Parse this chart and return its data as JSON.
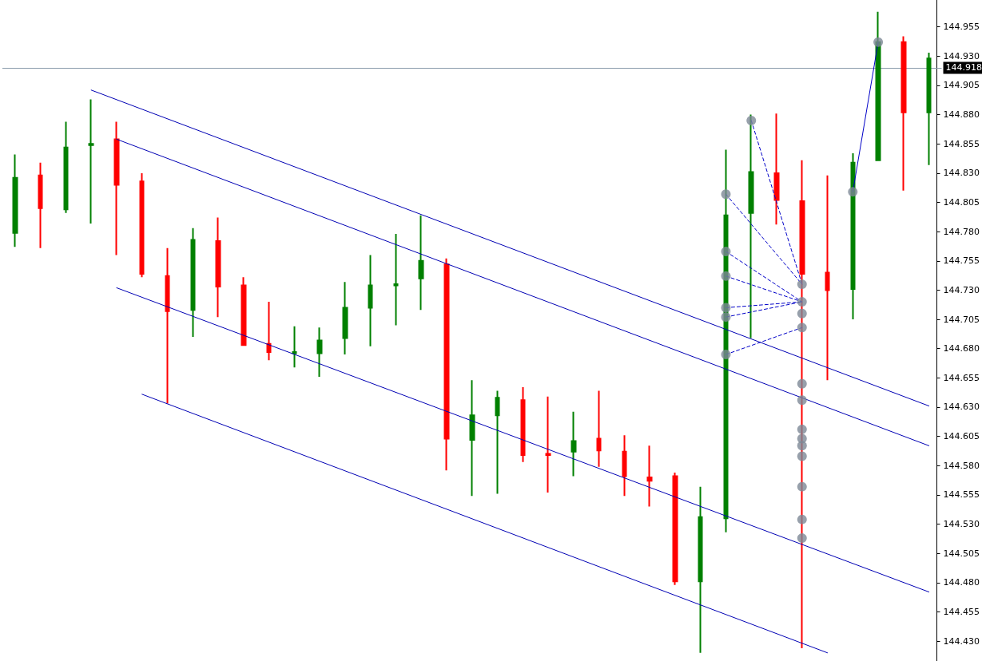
{
  "chart_data": {
    "type": "candlestick",
    "categories": [
      null,
      null,
      null,
      null,
      null,
      null,
      null,
      null,
      null,
      null,
      null,
      null,
      null,
      null,
      null,
      null,
      null,
      null,
      null,
      null,
      null,
      null,
      null,
      null,
      null,
      null,
      null,
      null,
      null,
      null,
      null,
      null,
      null,
      null,
      null,
      null,
      null
    ],
    "ohlc": [
      [
        144.779,
        144.846,
        144.767,
        144.826
      ],
      [
        144.828,
        144.839,
        144.766,
        144.8
      ],
      [
        144.799,
        144.874,
        144.796,
        144.852
      ],
      [
        144.854,
        144.893,
        144.787,
        144.855
      ],
      [
        144.859,
        144.874,
        144.76,
        144.82
      ],
      [
        144.823,
        144.83,
        144.741,
        144.744
      ],
      [
        144.742,
        144.766,
        144.633,
        144.712
      ],
      [
        144.713,
        144.783,
        144.69,
        144.773
      ],
      [
        144.772,
        144.792,
        144.707,
        144.733
      ],
      [
        144.734,
        144.741,
        144.683,
        144.683
      ],
      [
        144.684,
        144.72,
        144.67,
        144.677
      ],
      [
        144.676,
        144.699,
        144.664,
        144.677
      ],
      [
        144.676,
        144.698,
        144.656,
        144.687
      ],
      [
        144.689,
        144.737,
        144.675,
        144.715
      ],
      [
        144.715,
        144.76,
        144.682,
        144.734
      ],
      [
        144.734,
        144.778,
        144.7,
        144.735
      ],
      [
        144.74,
        144.794,
        144.713,
        144.755
      ],
      [
        144.752,
        144.757,
        144.576,
        144.603
      ],
      [
        144.602,
        144.653,
        144.554,
        144.623
      ],
      [
        144.623,
        144.644,
        144.556,
        144.638
      ],
      [
        144.636,
        144.647,
        144.583,
        144.589
      ],
      [
        144.59,
        144.639,
        144.557,
        144.589
      ],
      [
        144.592,
        144.626,
        144.571,
        144.601
      ],
      [
        144.603,
        144.644,
        144.579,
        144.593
      ],
      [
        144.592,
        144.606,
        144.554,
        144.571
      ],
      [
        144.57,
        144.597,
        144.545,
        144.567
      ],
      [
        144.571,
        144.574,
        144.478,
        144.481
      ],
      [
        144.481,
        144.562,
        144.42,
        144.536
      ],
      [
        144.535,
        144.85,
        144.523,
        144.794
      ],
      [
        144.796,
        144.88,
        144.689,
        144.831
      ],
      [
        144.83,
        144.881,
        144.786,
        144.807
      ],
      [
        144.806,
        144.841,
        144.424,
        144.744
      ],
      [
        144.745,
        144.828,
        144.653,
        144.73
      ],
      [
        144.731,
        144.847,
        144.705,
        144.839
      ],
      [
        144.841,
        144.968,
        144.841,
        144.942
      ],
      [
        144.942,
        144.947,
        144.815,
        144.882
      ],
      [
        144.882,
        144.933,
        144.837,
        144.928
      ]
    ],
    "colors": [
      "#008000",
      "#ff0000",
      "#008000",
      "#008000",
      "#ff0000",
      "#ff0000",
      "#ff0000",
      "#008000",
      "#ff0000",
      "#ff0000",
      "#ff0000",
      "#008000",
      "#008000",
      "#008000",
      "#008000",
      "#008000",
      "#008000",
      "#ff0000",
      "#008000",
      "#008000",
      "#ff0000",
      "#ff0000",
      "#008000",
      "#ff0000",
      "#ff0000",
      "#ff0000",
      "#ff0000",
      "#008000",
      "#008000",
      "#008000",
      "#ff0000",
      "#ff0000",
      "#ff0000",
      "#008000",
      "#008000",
      "#ff0000",
      "#008000"
    ],
    "series": [
      {
        "type": "line",
        "color": "#0000b4",
        "line_style": "solid",
        "values": [
          null,
          null,
          null,
          144.901,
          null,
          null,
          null,
          null,
          null,
          null,
          null,
          null,
          null,
          null,
          null,
          null,
          null,
          null,
          null,
          null,
          null,
          null,
          null,
          null,
          null,
          null,
          null,
          null,
          null,
          null,
          null,
          null,
          null,
          null,
          null,
          null,
          144.631
        ]
      },
      {
        "type": "line",
        "color": "#0000b4",
        "line_style": "solid",
        "values": [
          null,
          null,
          null,
          null,
          144.859,
          null,
          null,
          null,
          null,
          null,
          null,
          null,
          null,
          null,
          null,
          null,
          null,
          null,
          null,
          null,
          null,
          null,
          null,
          null,
          null,
          null,
          null,
          null,
          null,
          null,
          null,
          null,
          null,
          null,
          null,
          null,
          144.597
        ]
      },
      {
        "type": "line",
        "color": "#0000b4",
        "line_style": "solid",
        "values": [
          null,
          null,
          null,
          null,
          144.732,
          null,
          null,
          null,
          null,
          null,
          null,
          null,
          null,
          null,
          null,
          null,
          null,
          null,
          null,
          null,
          null,
          null,
          null,
          null,
          null,
          null,
          null,
          null,
          null,
          null,
          null,
          null,
          null,
          null,
          null,
          null,
          144.472
        ]
      },
      {
        "type": "line",
        "color": "#0000b4",
        "line_style": "solid",
        "values": [
          null,
          null,
          null,
          null,
          null,
          144.641,
          null,
          null,
          null,
          null,
          null,
          null,
          null,
          null,
          null,
          null,
          null,
          null,
          null,
          null,
          null,
          null,
          null,
          null,
          null,
          null,
          null,
          null,
          null,
          null,
          null,
          null,
          144.42,
          null,
          null,
          null,
          null
        ]
      },
      {
        "type": "line",
        "color": "#0000c8",
        "line_style": "dashed",
        "values": [
          null,
          null,
          null,
          null,
          null,
          null,
          null,
          null,
          null,
          null,
          null,
          null,
          null,
          null,
          null,
          null,
          null,
          null,
          null,
          null,
          null,
          null,
          null,
          null,
          null,
          null,
          null,
          null,
          144.812,
          null,
          null,
          144.735,
          null,
          null,
          null,
          null,
          null
        ]
      },
      {
        "type": "line",
        "color": "#0000c8",
        "line_style": "dashed",
        "values": [
          null,
          null,
          null,
          null,
          null,
          null,
          null,
          null,
          null,
          null,
          null,
          null,
          null,
          null,
          null,
          null,
          null,
          null,
          null,
          null,
          null,
          null,
          null,
          null,
          null,
          null,
          null,
          null,
          144.763,
          null,
          null,
          144.72,
          null,
          null,
          null,
          null,
          null
        ]
      },
      {
        "type": "line",
        "color": "#0000c8",
        "line_style": "dashed",
        "values": [
          null,
          null,
          null,
          null,
          null,
          null,
          null,
          null,
          null,
          null,
          null,
          null,
          null,
          null,
          null,
          null,
          null,
          null,
          null,
          null,
          null,
          null,
          null,
          null,
          null,
          null,
          null,
          null,
          144.742,
          null,
          null,
          144.72,
          null,
          null,
          null,
          null,
          null
        ]
      },
      {
        "type": "line",
        "color": "#0000c8",
        "line_style": "dashed",
        "values": [
          null,
          null,
          null,
          null,
          null,
          null,
          null,
          null,
          null,
          null,
          null,
          null,
          null,
          null,
          null,
          null,
          null,
          null,
          null,
          null,
          null,
          null,
          null,
          null,
          null,
          null,
          null,
          null,
          144.715,
          null,
          null,
          144.72,
          null,
          null,
          null,
          null,
          null
        ]
      },
      {
        "type": "line",
        "color": "#0000c8",
        "line_style": "dashed",
        "values": [
          null,
          null,
          null,
          null,
          null,
          null,
          null,
          null,
          null,
          null,
          null,
          null,
          null,
          null,
          null,
          null,
          null,
          null,
          null,
          null,
          null,
          null,
          null,
          null,
          null,
          null,
          null,
          null,
          144.707,
          null,
          null,
          144.72,
          null,
          null,
          null,
          null,
          null
        ]
      },
      {
        "type": "line",
        "color": "#0000c8",
        "line_style": "dashed",
        "values": [
          null,
          null,
          null,
          null,
          null,
          null,
          null,
          null,
          null,
          null,
          null,
          null,
          null,
          null,
          null,
          null,
          null,
          null,
          null,
          null,
          null,
          null,
          null,
          null,
          null,
          null,
          null,
          null,
          144.675,
          null,
          null,
          144.698,
          null,
          null,
          null,
          null,
          null
        ]
      },
      {
        "type": "line",
        "color": "#0000c8",
        "line_style": "dashed",
        "values": [
          null,
          null,
          null,
          null,
          null,
          null,
          null,
          null,
          null,
          null,
          null,
          null,
          null,
          null,
          null,
          null,
          null,
          null,
          null,
          null,
          null,
          null,
          null,
          null,
          null,
          null,
          null,
          null,
          null,
          144.875,
          null,
          144.735,
          null,
          null,
          null,
          null,
          null
        ]
      },
      {
        "type": "line",
        "color": "#0000c8",
        "line_style": "solid",
        "values": [
          null,
          null,
          null,
          null,
          null,
          null,
          null,
          null,
          null,
          null,
          null,
          null,
          null,
          null,
          null,
          null,
          null,
          null,
          null,
          null,
          null,
          null,
          null,
          null,
          null,
          null,
          null,
          null,
          null,
          null,
          null,
          null,
          null,
          144.814,
          144.942,
          null,
          null
        ]
      },
      {
        "type": "scatter",
        "color": "#7d8896",
        "marker": "circle",
        "values": [
          null,
          null,
          null,
          null,
          null,
          null,
          null,
          null,
          null,
          null,
          null,
          null,
          null,
          null,
          null,
          null,
          null,
          null,
          null,
          null,
          null,
          null,
          null,
          null,
          null,
          null,
          null,
          null,
          144.812,
          144.875,
          null,
          144.735,
          null,
          144.814,
          144.942,
          null,
          null
        ]
      },
      {
        "type": "scatter",
        "color": "#7d8896",
        "marker": "circle",
        "values": [
          null,
          null,
          null,
          null,
          null,
          null,
          null,
          null,
          null,
          null,
          null,
          null,
          null,
          null,
          null,
          null,
          null,
          null,
          null,
          null,
          null,
          null,
          null,
          null,
          null,
          null,
          null,
          null,
          144.763,
          null,
          null,
          144.72,
          null,
          null,
          null,
          null,
          null
        ]
      },
      {
        "type": "scatter",
        "color": "#7d8896",
        "marker": "circle",
        "values": [
          null,
          null,
          null,
          null,
          null,
          null,
          null,
          null,
          null,
          null,
          null,
          null,
          null,
          null,
          null,
          null,
          null,
          null,
          null,
          null,
          null,
          null,
          null,
          null,
          null,
          null,
          null,
          null,
          144.742,
          null,
          null,
          144.71,
          null,
          null,
          null,
          null,
          null
        ]
      },
      {
        "type": "scatter",
        "color": "#7d8896",
        "marker": "circle",
        "values": [
          null,
          null,
          null,
          null,
          null,
          null,
          null,
          null,
          null,
          null,
          null,
          null,
          null,
          null,
          null,
          null,
          null,
          null,
          null,
          null,
          null,
          null,
          null,
          null,
          null,
          null,
          null,
          null,
          144.715,
          null,
          null,
          144.698,
          null,
          null,
          null,
          null,
          null
        ]
      },
      {
        "type": "scatter",
        "color": "#7d8896",
        "marker": "circle",
        "values": [
          null,
          null,
          null,
          null,
          null,
          null,
          null,
          null,
          null,
          null,
          null,
          null,
          null,
          null,
          null,
          null,
          null,
          null,
          null,
          null,
          null,
          null,
          null,
          null,
          null,
          null,
          null,
          null,
          144.707,
          null,
          null,
          144.65,
          null,
          null,
          null,
          null,
          null
        ]
      },
      {
        "type": "scatter",
        "color": "#7d8896",
        "marker": "circle",
        "values": [
          null,
          null,
          null,
          null,
          null,
          null,
          null,
          null,
          null,
          null,
          null,
          null,
          null,
          null,
          null,
          null,
          null,
          null,
          null,
          null,
          null,
          null,
          null,
          null,
          null,
          null,
          null,
          null,
          144.675,
          null,
          null,
          144.636,
          null,
          null,
          null,
          null,
          null
        ]
      },
      {
        "type": "scatter",
        "color": "#7d8896",
        "marker": "circle",
        "values": [
          null,
          null,
          null,
          null,
          null,
          null,
          null,
          null,
          null,
          null,
          null,
          null,
          null,
          null,
          null,
          null,
          null,
          null,
          null,
          null,
          null,
          null,
          null,
          null,
          null,
          null,
          null,
          null,
          null,
          null,
          null,
          144.611,
          null,
          null,
          null,
          null,
          null
        ]
      },
      {
        "type": "scatter",
        "color": "#7d8896",
        "marker": "circle",
        "values": [
          null,
          null,
          null,
          null,
          null,
          null,
          null,
          null,
          null,
          null,
          null,
          null,
          null,
          null,
          null,
          null,
          null,
          null,
          null,
          null,
          null,
          null,
          null,
          null,
          null,
          null,
          null,
          null,
          null,
          null,
          null,
          144.603,
          null,
          null,
          null,
          null,
          null
        ]
      },
      {
        "type": "scatter",
        "color": "#7d8896",
        "marker": "circle",
        "values": [
          null,
          null,
          null,
          null,
          null,
          null,
          null,
          null,
          null,
          null,
          null,
          null,
          null,
          null,
          null,
          null,
          null,
          null,
          null,
          null,
          null,
          null,
          null,
          null,
          null,
          null,
          null,
          null,
          null,
          null,
          null,
          144.597,
          null,
          null,
          null,
          null,
          null
        ]
      },
      {
        "type": "scatter",
        "color": "#7d8896",
        "marker": "circle",
        "values": [
          null,
          null,
          null,
          null,
          null,
          null,
          null,
          null,
          null,
          null,
          null,
          null,
          null,
          null,
          null,
          null,
          null,
          null,
          null,
          null,
          null,
          null,
          null,
          null,
          null,
          null,
          null,
          null,
          null,
          null,
          null,
          144.588,
          null,
          null,
          null,
          null,
          null
        ]
      },
      {
        "type": "scatter",
        "color": "#7d8896",
        "marker": "circle",
        "values": [
          null,
          null,
          null,
          null,
          null,
          null,
          null,
          null,
          null,
          null,
          null,
          null,
          null,
          null,
          null,
          null,
          null,
          null,
          null,
          null,
          null,
          null,
          null,
          null,
          null,
          null,
          null,
          null,
          null,
          null,
          null,
          144.562,
          null,
          null,
          null,
          null,
          null
        ]
      },
      {
        "type": "scatter",
        "color": "#7d8896",
        "marker": "circle",
        "values": [
          null,
          null,
          null,
          null,
          null,
          null,
          null,
          null,
          null,
          null,
          null,
          null,
          null,
          null,
          null,
          null,
          null,
          null,
          null,
          null,
          null,
          null,
          null,
          null,
          null,
          null,
          null,
          null,
          null,
          null,
          null,
          144.534,
          null,
          null,
          null,
          null,
          null
        ]
      },
      {
        "type": "scatter",
        "color": "#7d8896",
        "marker": "circle",
        "values": [
          null,
          null,
          null,
          null,
          null,
          null,
          null,
          null,
          null,
          null,
          null,
          null,
          null,
          null,
          null,
          null,
          null,
          null,
          null,
          null,
          null,
          null,
          null,
          null,
          null,
          null,
          null,
          null,
          null,
          null,
          null,
          144.518,
          null,
          null,
          null,
          null,
          null
        ]
      }
    ],
    "ylim": [
      144.413,
      144.978
    ],
    "yticks": [
      {
        "value": 144.43,
        "label": "144.430"
      },
      {
        "value": 144.455,
        "label": "144.455"
      },
      {
        "value": 144.48,
        "label": "144.480"
      },
      {
        "value": 144.505,
        "label": "144.505"
      },
      {
        "value": 144.53,
        "label": "144.530"
      },
      {
        "value": 144.555,
        "label": "144.555"
      },
      {
        "value": 144.58,
        "label": "144.580"
      },
      {
        "value": 144.605,
        "label": "144.605"
      },
      {
        "value": 144.63,
        "label": "144.630"
      },
      {
        "value": 144.655,
        "label": "144.655"
      },
      {
        "value": 144.68,
        "label": "144.680"
      },
      {
        "value": 144.705,
        "label": "144.705"
      },
      {
        "value": 144.73,
        "label": "144.730"
      },
      {
        "value": 144.755,
        "label": "144.755"
      },
      {
        "value": 144.78,
        "label": "144.780"
      },
      {
        "value": 144.805,
        "label": "144.805"
      },
      {
        "value": 144.83,
        "label": "144.830"
      },
      {
        "value": 144.855,
        "label": "144.855"
      },
      {
        "value": 144.88,
        "label": "144.880"
      },
      {
        "value": 144.905,
        "label": "144.905"
      },
      {
        "value": 144.93,
        "label": "144.930"
      },
      {
        "value": 144.955,
        "label": "144.955"
      }
    ],
    "ref_lines": [
      {
        "axis": "y",
        "value": 144.918,
        "label": "144.918",
        "color": "#8a9bab"
      }
    ],
    "tick_labels": "y"
  }
}
